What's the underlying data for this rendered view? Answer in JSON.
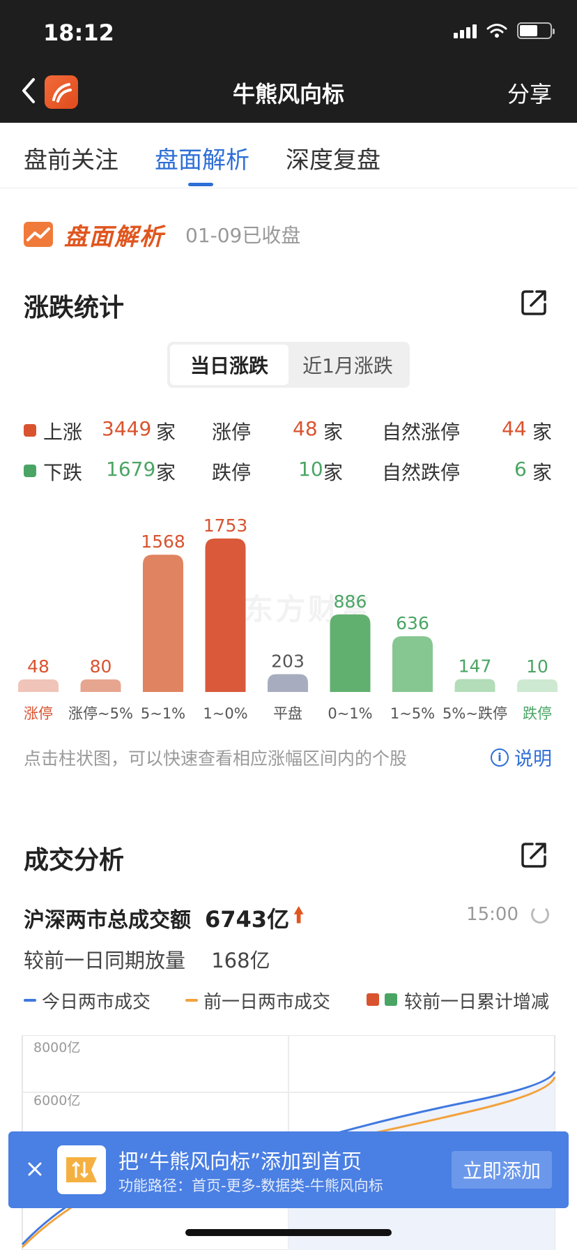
{
  "status": {
    "time": "18:12"
  },
  "nav": {
    "title": "牛熊风向标",
    "share": "分享"
  },
  "tabs": [
    {
      "label": "盘前关注",
      "active": false
    },
    {
      "label": "盘面解析",
      "active": true
    },
    {
      "label": "深度复盘",
      "active": false
    }
  ],
  "section_brand": {
    "title": "盘面解析",
    "date": "01-09已收盘"
  },
  "rise_fall": {
    "title": "涨跌统计",
    "segments": [
      "当日涨跌",
      "近1月涨跌"
    ],
    "rows": [
      {
        "label": "上涨",
        "value": "3449",
        "unit": "家",
        "label2": "涨停",
        "value2": "48",
        "unit2": "家",
        "label3": "自然涨停",
        "value3": "44",
        "unit3": "家",
        "color": "#d9532f"
      },
      {
        "label": "下跌",
        "value": "1679",
        "unit": "家",
        "label2": "跌停",
        "value2": "10",
        "unit2": "家",
        "label3": "自然跌停",
        "value3": "6",
        "unit3": "家",
        "color": "#4aa564"
      }
    ],
    "hint": "点击柱状图，可以快速查看相应涨幅区间内的个股",
    "explain": "说明",
    "watermark": "东方财富"
  },
  "chart_data": {
    "type": "bar",
    "categories": [
      "涨停",
      "涨停~5%",
      "5~1%",
      "1~0%",
      "平盘",
      "0~1%",
      "1~5%",
      "5%~跌停",
      "跌停"
    ],
    "values": [
      48,
      80,
      1568,
      1753,
      203,
      886,
      636,
      147,
      10
    ],
    "colors": [
      "#f0c4b8",
      "#e6a58f",
      "#e08360",
      "#d9593a",
      "#a7adbf",
      "#62b06f",
      "#86c690",
      "#b3dcb8",
      "#cde9d1"
    ],
    "label_colors": [
      "#d9532f",
      "#d9532f",
      "#d9532f",
      "#d9532f",
      "#555555",
      "#4aa564",
      "#4aa564",
      "#4aa564",
      "#4aa564"
    ],
    "tick_colors": [
      "#d9532f",
      "#555555",
      "#555555",
      "#555555",
      "#555555",
      "#555555",
      "#555555",
      "#555555",
      "#4aa564"
    ]
  },
  "turnover": {
    "title": "成交分析",
    "total_label": "沪深两市总成交额",
    "total_value": "6743亿",
    "time": "15:00",
    "compare_label": "较前一日同期放量",
    "compare_value": "168亿",
    "legend": [
      "今日两市成交",
      "前一日两市成交",
      "较前一日累计增减"
    ],
    "y_ticks": [
      "8000亿",
      "6000亿"
    ]
  },
  "banner": {
    "title": "把“牛熊风向标”添加到首页",
    "subtitle": "功能路径：首页-更多-数据类-牛熊风向标",
    "button": "立即添加"
  }
}
